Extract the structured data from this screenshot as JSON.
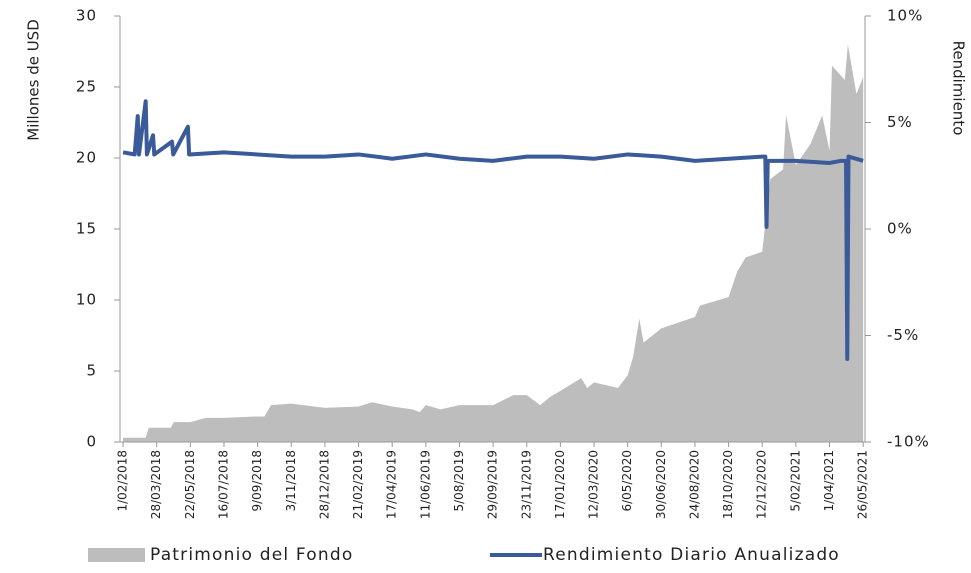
{
  "chart_data": {
    "type": "combo",
    "ylabel": "Millones de USD",
    "y2label": "Rendimiento",
    "xlim": [
      "27/01/2018",
      "29/05/2021"
    ],
    "xticks": [
      "1/02/2018",
      "28/03/2018",
      "22/05/2018",
      "16/07/2018",
      "9/09/2018",
      "3/11/2018",
      "28/12/2018",
      "21/02/2019",
      "17/04/2019",
      "11/06/2019",
      "5/08/2019",
      "29/09/2019",
      "23/11/2019",
      "17/01/2020",
      "12/03/2020",
      "6/05/2020",
      "30/06/2020",
      "24/08/2020",
      "18/10/2020",
      "12/12/2020",
      "5/02/2021",
      "1/04/2021",
      "26/05/2021"
    ],
    "ylim": [
      0,
      30
    ],
    "yticks": [
      0,
      5,
      10,
      15,
      20,
      25,
      30
    ],
    "y2lim": [
      -10,
      10
    ],
    "y2ticks": [
      {
        "value": -10,
        "label": "-10%"
      },
      {
        "value": -5,
        "label": "-5%"
      },
      {
        "value": 0,
        "label": "0%"
      },
      {
        "value": 5,
        "label": "5%"
      },
      {
        "value": 10,
        "label": "10%"
      }
    ],
    "legend": "bottom",
    "series": [
      {
        "name": "Patrimonio del Fondo",
        "color": "#bdbdbd",
        "type": "area",
        "x": [
          "1/02/2018",
          "10/03/2018",
          "15/03/2018",
          "20/04/2018",
          "25/04/2018",
          "22/05/2018",
          "16/06/2018",
          "16/07/2018",
          "9/09/2018",
          "20/09/2018",
          "1/10/2018",
          "3/11/2018",
          "28/12/2018",
          "21/02/2019",
          "15/03/2019",
          "17/04/2019",
          "20/05/2019",
          "1/06/2019",
          "11/06/2019",
          "5/07/2019",
          "5/08/2019",
          "29/09/2019",
          "1/11/2019",
          "23/11/2019",
          "15/12/2019",
          "1/01/2020",
          "17/01/2020",
          "20/02/2020",
          "1/03/2020",
          "12/03/2020",
          "20/04/2020",
          "6/05/2020",
          "15/05/2020",
          "25/05/2020",
          "1/06/2020",
          "30/06/2020",
          "24/08/2020",
          "1/09/2020",
          "18/10/2020",
          "1/11/2020",
          "15/11/2020",
          "12/12/2020",
          "25/12/2020",
          "15/01/2021",
          "20/01/2021",
          "5/02/2021",
          "1/03/2021",
          "20/03/2021",
          "1/04/2021",
          "5/04/2021",
          "26/04/2021",
          "1/05/2021",
          "15/05/2021",
          "26/05/2021"
        ],
        "values": [
          0.3,
          0.3,
          1.0,
          1.0,
          1.4,
          1.4,
          1.7,
          1.7,
          1.8,
          1.8,
          2.6,
          2.7,
          2.4,
          2.5,
          2.8,
          2.5,
          2.3,
          2.1,
          2.6,
          2.3,
          2.6,
          2.6,
          3.3,
          3.3,
          2.6,
          3.2,
          3.6,
          4.5,
          3.8,
          4.2,
          3.8,
          4.7,
          6.0,
          8.7,
          7.0,
          8.0,
          8.8,
          9.6,
          10.2,
          12.0,
          13.0,
          13.4,
          18.5,
          19.2,
          23.0,
          19.5,
          21.0,
          23.0,
          20.5,
          26.5,
          25.5,
          28.0,
          24.5,
          25.7
        ]
      },
      {
        "name": "Rendimiento Diario Anualizado",
        "color": "#3a5a9a",
        "type": "line",
        "axis": "y2",
        "x": [
          "1/02/2018",
          "20/02/2018",
          "25/02/2018",
          "27/02/2018",
          "10/03/2018",
          "12/03/2018",
          "22/03/2018",
          "24/03/2018",
          "22/04/2018",
          "24/04/2018",
          "18/05/2018",
          "20/05/2018",
          "16/07/2018",
          "9/09/2018",
          "3/11/2018",
          "28/12/2018",
          "21/02/2019",
          "17/04/2019",
          "11/06/2019",
          "5/08/2019",
          "29/09/2019",
          "23/11/2019",
          "17/01/2020",
          "12/03/2020",
          "6/05/2020",
          "30/06/2020",
          "24/08/2020",
          "18/10/2020",
          "12/12/2020",
          "17/12/2020",
          "19/12/2020",
          "21/12/2020",
          "5/02/2021",
          "1/04/2021",
          "20/04/2021",
          "28/04/2021",
          "30/04/2021",
          "2/05/2021",
          "26/05/2021"
        ],
        "values": [
          3.6,
          3.5,
          5.3,
          3.5,
          6.0,
          3.5,
          4.4,
          3.5,
          4.1,
          3.5,
          4.8,
          3.5,
          3.6,
          3.5,
          3.4,
          3.4,
          3.5,
          3.3,
          3.5,
          3.3,
          3.2,
          3.4,
          3.4,
          3.3,
          3.5,
          3.4,
          3.2,
          3.3,
          3.4,
          3.4,
          0.1,
          3.2,
          3.2,
          3.1,
          3.2,
          3.2,
          -6.1,
          3.4,
          3.2
        ]
      }
    ]
  }
}
